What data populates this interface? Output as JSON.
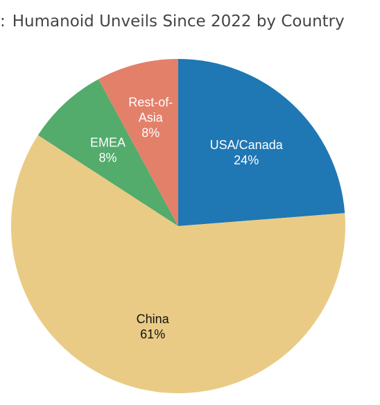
{
  "header": {
    "prefix": ":",
    "title": "Humanoid Unveils Since 2022 by Country"
  },
  "chart_data": {
    "type": "pie",
    "title": "Humanoid Unveils Since 2022 by Country",
    "slices": [
      {
        "label": "USA/Canada",
        "label_lines": [
          "USA/Canada"
        ],
        "value": 24,
        "display": "24%",
        "color": "#1f77b4",
        "text_color": "#ffffff"
      },
      {
        "label": "China",
        "label_lines": [
          "China"
        ],
        "value": 61,
        "display": "61%",
        "color": "#e9cb85",
        "text_color": "#111111"
      },
      {
        "label": "EMEA",
        "label_lines": [
          "EMEA"
        ],
        "value": 8,
        "display": "8%",
        "color": "#53ab6c",
        "text_color": "#ffffff"
      },
      {
        "label": "Rest-of-Asia",
        "label_lines": [
          "Rest-of-",
          "Asia"
        ],
        "value": 8,
        "display": "8%",
        "color": "#e3806a",
        "text_color": "#ffffff"
      }
    ],
    "start_angle": "12 o'clock",
    "direction": "clockwise"
  }
}
